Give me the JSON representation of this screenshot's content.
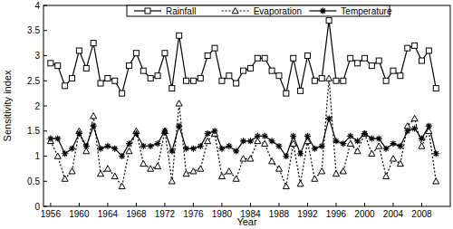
{
  "chart_data": {
    "type": "line",
    "x_label": "Year",
    "y_label": "Sensitivity index",
    "x": [
      1956,
      1957,
      1958,
      1959,
      1960,
      1961,
      1962,
      1963,
      1964,
      1965,
      1966,
      1967,
      1968,
      1969,
      1970,
      1971,
      1972,
      1973,
      1974,
      1975,
      1976,
      1977,
      1978,
      1979,
      1980,
      1981,
      1982,
      1983,
      1984,
      1985,
      1986,
      1987,
      1988,
      1989,
      1990,
      1991,
      1992,
      1993,
      1994,
      1995,
      1996,
      1997,
      1998,
      1999,
      2000,
      2001,
      2002,
      2003,
      2004,
      2005,
      2006,
      2007,
      2008,
      2009,
      2010
    ],
    "xlim": [
      1955,
      2012
    ],
    "xticks": [
      1956,
      1960,
      1964,
      1968,
      1972,
      1976,
      1980,
      1984,
      1988,
      1992,
      1996,
      2000,
      2004,
      2008
    ],
    "ylim": [
      0,
      4
    ],
    "yticks": [
      0,
      0.5,
      1,
      1.5,
      2,
      2.5,
      3,
      3.5,
      4
    ],
    "legend": "top",
    "series": [
      {
        "name": "Rainfall",
        "color": "#000000",
        "marker": "square",
        "line_style": "solid",
        "values": [
          2.85,
          2.8,
          2.4,
          2.55,
          3.1,
          2.75,
          3.25,
          2.45,
          2.55,
          2.5,
          2.25,
          2.8,
          3.05,
          2.7,
          2.55,
          2.6,
          3.05,
          2.35,
          3.4,
          2.5,
          2.5,
          2.55,
          3.0,
          3.15,
          2.5,
          2.6,
          2.45,
          2.7,
          2.75,
          2.95,
          2.95,
          2.7,
          2.6,
          2.25,
          2.95,
          2.3,
          3.0,
          2.5,
          2.55,
          3.7,
          2.5,
          2.5,
          2.95,
          2.85,
          2.95,
          2.8,
          2.9,
          2.5,
          2.7,
          2.6,
          3.15,
          3.2,
          2.9,
          3.1,
          2.35
        ]
      },
      {
        "name": "Evaporation",
        "color": "#000000",
        "marker": "triangle",
        "line_style": "dotted",
        "values": [
          1.3,
          1.0,
          0.55,
          0.7,
          1.5,
          1.1,
          1.8,
          0.65,
          0.75,
          0.6,
          0.4,
          1.1,
          1.5,
          0.85,
          0.75,
          0.8,
          1.5,
          0.5,
          2.05,
          0.65,
          0.7,
          0.75,
          1.3,
          1.45,
          0.6,
          0.7,
          0.55,
          0.95,
          0.95,
          1.3,
          1.25,
          0.9,
          0.75,
          0.4,
          1.25,
          0.45,
          1.3,
          0.55,
          0.7,
          2.55,
          0.65,
          0.7,
          1.25,
          1.1,
          1.45,
          1.05,
          1.2,
          0.6,
          0.95,
          0.85,
          1.6,
          1.75,
          1.2,
          1.5,
          0.5
        ]
      },
      {
        "name": "Temperature",
        "color": "#000000",
        "marker": "asterisk",
        "line_style": "solid",
        "values": [
          1.35,
          1.35,
          1.05,
          1.15,
          1.45,
          1.2,
          1.6,
          1.15,
          1.2,
          1.15,
          1.0,
          1.25,
          1.45,
          1.2,
          1.2,
          1.25,
          1.5,
          1.1,
          1.6,
          1.15,
          1.15,
          1.2,
          1.45,
          1.5,
          1.15,
          1.2,
          1.1,
          1.3,
          1.3,
          1.4,
          1.4,
          1.3,
          1.2,
          1.0,
          1.4,
          1.05,
          1.4,
          1.15,
          1.2,
          1.75,
          1.3,
          1.25,
          1.4,
          1.3,
          1.45,
          1.35,
          1.35,
          1.15,
          1.25,
          1.2,
          1.5,
          1.55,
          1.35,
          1.6,
          1.05
        ]
      }
    ]
  }
}
